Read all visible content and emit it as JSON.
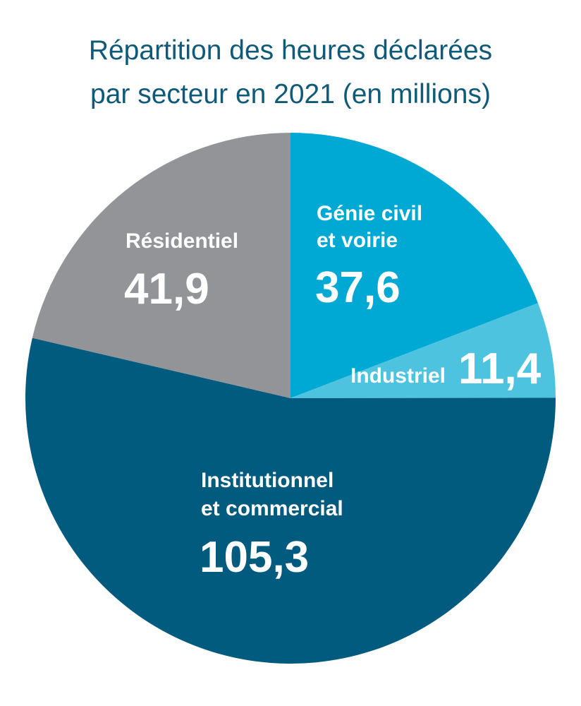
{
  "chart_data": {
    "type": "pie",
    "title_lines": [
      "Répartition des heures déclarées",
      "par secteur en 2021 (en millions)"
    ],
    "start_angle_deg": 0,
    "direction": "clockwise",
    "slices": [
      {
        "label_lines": [
          "Génie civil",
          "et voirie"
        ],
        "value": 37.6,
        "value_text": "37,6",
        "color": "#00a9d4"
      },
      {
        "label_lines": [
          "Industriel"
        ],
        "value": 11.4,
        "value_text": "11,4",
        "color": "#4ec3e0"
      },
      {
        "label_lines": [
          "Institutionnel",
          "et commercial"
        ],
        "value": 105.3,
        "value_text": "105,3",
        "color": "#005b7f"
      },
      {
        "label_lines": [
          "Résidentiel"
        ],
        "value": 41.9,
        "value_text": "41,9",
        "color": "#929497"
      }
    ]
  }
}
